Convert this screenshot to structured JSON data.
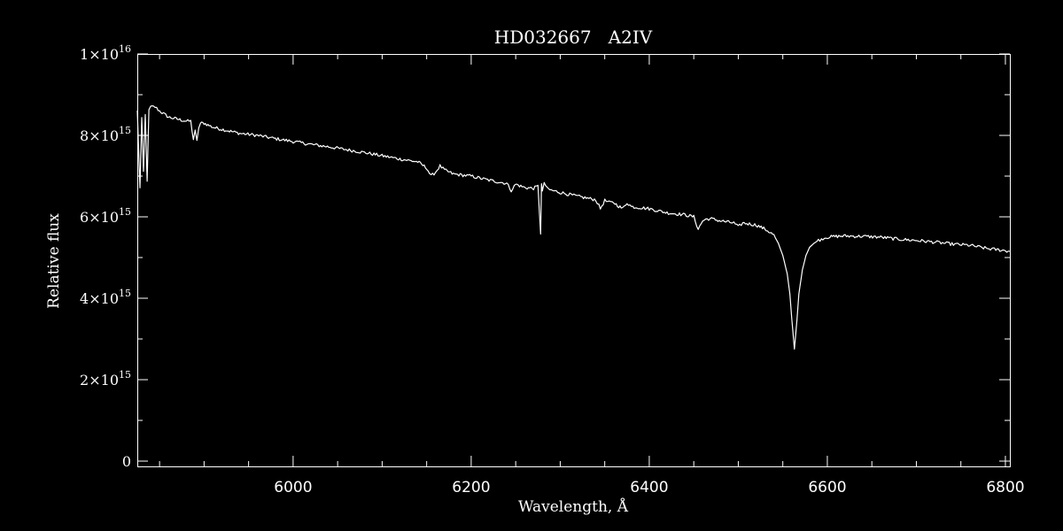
{
  "chart_data": {
    "type": "line",
    "title": "HD032667   A2IV",
    "xlabel": "Wavelength, Å",
    "ylabel": "Relative flux",
    "xlim": [
      5825,
      6805
    ],
    "ylim": [
      -130000000000000.0,
      1e+16
    ],
    "x_ticks": [
      {
        "value": 6000,
        "label": "6000"
      },
      {
        "value": 6200,
        "label": "6200"
      },
      {
        "value": 6400,
        "label": "6400"
      },
      {
        "value": 6600,
        "label": "6600"
      },
      {
        "value": 6800,
        "label": "6800"
      }
    ],
    "y_ticks": [
      {
        "value": 0,
        "mant": "0",
        "exp": ""
      },
      {
        "value": 2000000000000000.0,
        "mant": "2×10",
        "exp": "15"
      },
      {
        "value": 4000000000000000.0,
        "mant": "4×10",
        "exp": "15"
      },
      {
        "value": 6000000000000000.0,
        "mant": "6×10",
        "exp": "15"
      },
      {
        "value": 8000000000000000.0,
        "mant": "8×10",
        "exp": "15"
      },
      {
        "value": 1e+16,
        "mant": "1×10",
        "exp": "16"
      }
    ],
    "grid": false,
    "series": [
      {
        "color": "#ffffff",
        "x": [
          5825,
          5828,
          5830,
          5832,
          5834,
          5836,
          5838,
          5840,
          5845,
          5850,
          5860,
          5870,
          5880,
          5885,
          5888,
          5890,
          5892,
          5894,
          5896,
          5900,
          5910,
          5920,
          5930,
          5940,
          5960,
          5980,
          6000,
          6020,
          6040,
          6060,
          6080,
          6100,
          6120,
          6140,
          6150,
          6155,
          6160,
          6165,
          6170,
          6180,
          6200,
          6220,
          6240,
          6245,
          6250,
          6260,
          6270,
          6275,
          6278,
          6279,
          6280,
          6282,
          6285,
          6290,
          6300,
          6320,
          6340,
          6345,
          6350,
          6355,
          6360,
          6370,
          6375,
          6380,
          6400,
          6420,
          6440,
          6450,
          6455,
          6460,
          6465,
          6470,
          6480,
          6495,
          6500,
          6505,
          6520,
          6530,
          6540,
          6545,
          6550,
          6555,
          6558,
          6560,
          6562,
          6563,
          6564,
          6566,
          6568,
          6572,
          6576,
          6580,
          6585,
          6590,
          6595,
          6600,
          6610,
          6620,
          6640,
          6660,
          6680,
          6700,
          6720,
          6740,
          6760,
          6780,
          6800,
          6805
        ],
        "y": [
          8600000000000000.0,
          6700000000000000.0,
          8400000000000000.0,
          7100000000000000.0,
          8500000000000000.0,
          6900000000000000.0,
          8600000000000000.0,
          8700000000000000.0,
          8700000000000000.0,
          8600000000000000.0,
          8450000000000000.0,
          8400000000000000.0,
          8350000000000000.0,
          8350000000000000.0,
          7900000000000000.0,
          8100000000000000.0,
          7850000000000000.0,
          8200000000000000.0,
          8300000000000000.0,
          8300000000000000.0,
          8200000000000000.0,
          8150000000000000.0,
          8100000000000000.0,
          8050000000000000.0,
          8000000000000000.0,
          7920000000000000.0,
          7850000000000000.0,
          7780000000000000.0,
          7720000000000000.0,
          7650000000000000.0,
          7580000000000000.0,
          7500000000000000.0,
          7420000000000000.0,
          7350000000000000.0,
          7200000000000000.0,
          7000000000000000.0,
          7100000000000000.0,
          7250000000000000.0,
          7150000000000000.0,
          7050000000000000.0,
          7000000000000000.0,
          6900000000000000.0,
          6820000000000000.0,
          6650000000000000.0,
          6800000000000000.0,
          6720000000000000.0,
          6700000000000000.0,
          6750000000000000.0,
          5600000000000000.0,
          6800000000000000.0,
          6600000000000000.0,
          6850000000000000.0,
          6700000000000000.0,
          6650000000000000.0,
          6600000000000000.0,
          6500000000000000.0,
          6420000000000000.0,
          6200000000000000.0,
          6400000000000000.0,
          6350000000000000.0,
          6350000000000000.0,
          6200000000000000.0,
          6350000000000000.0,
          6250000000000000.0,
          6200000000000000.0,
          6100000000000000.0,
          6050000000000000.0,
          6000000000000000.0,
          5700000000000000.0,
          5900000000000000.0,
          5950000000000000.0,
          5950000000000000.0,
          5900000000000000.0,
          5850000000000000.0,
          5750000000000000.0,
          5850000000000000.0,
          5800000000000000.0,
          5700000000000000.0,
          5550000000000000.0,
          5350000000000000.0,
          5050000000000000.0,
          4600000000000000.0,
          4100000000000000.0,
          3500000000000000.0,
          3000000000000000.0,
          2750000000000000.0,
          3000000000000000.0,
          3500000000000000.0,
          4100000000000000.0,
          4700000000000000.0,
          5050000000000000.0,
          5250000000000000.0,
          5350000000000000.0,
          5420000000000000.0,
          5470000000000000.0,
          5500000000000000.0,
          5520000000000000.0,
          5530000000000000.0,
          5520000000000000.0,
          5500000000000000.0,
          5450000000000000.0,
          5420000000000000.0,
          5380000000000000.0,
          5330000000000000.0,
          5300000000000000.0,
          5220000000000000.0,
          5170000000000000.0,
          5150000000000000.0
        ]
      }
    ]
  }
}
